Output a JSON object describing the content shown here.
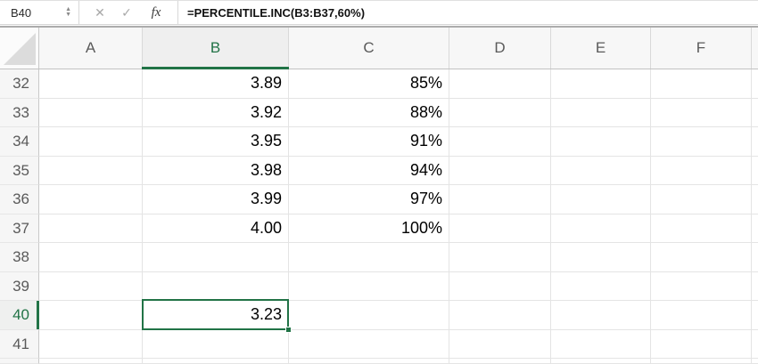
{
  "formula_bar": {
    "cell_reference": "B40",
    "formula": "=PERCENTILE.INC(B3:B37,60%)",
    "icons": {
      "stepper_up": "▲",
      "stepper_down": "▼",
      "cancel": "✕",
      "confirm": "✓",
      "function": "fx"
    }
  },
  "grid": {
    "column_headers": [
      "A",
      "B",
      "C",
      "D",
      "E",
      "F"
    ],
    "selected_column": "B",
    "selected_row": "40",
    "active_cell": "B40",
    "rows": [
      {
        "num": "32",
        "cells": [
          "",
          "3.89",
          "85%",
          "",
          "",
          ""
        ]
      },
      {
        "num": "33",
        "cells": [
          "",
          "3.92",
          "88%",
          "",
          "",
          ""
        ]
      },
      {
        "num": "34",
        "cells": [
          "",
          "3.95",
          "91%",
          "",
          "",
          ""
        ]
      },
      {
        "num": "35",
        "cells": [
          "",
          "3.98",
          "94%",
          "",
          "",
          ""
        ]
      },
      {
        "num": "36",
        "cells": [
          "",
          "3.99",
          "97%",
          "",
          "",
          ""
        ]
      },
      {
        "num": "37",
        "cells": [
          "",
          "4.00",
          "100%",
          "",
          "",
          ""
        ]
      },
      {
        "num": "38",
        "cells": [
          "",
          "",
          "",
          "",
          "",
          ""
        ]
      },
      {
        "num": "39",
        "cells": [
          "",
          "",
          "",
          "",
          "",
          ""
        ]
      },
      {
        "num": "40",
        "cells": [
          "",
          "3.23",
          "",
          "",
          "",
          ""
        ]
      },
      {
        "num": "41",
        "cells": [
          "",
          "",
          "",
          "",
          "",
          ""
        ]
      }
    ]
  },
  "colors": {
    "accent_green": "#217346",
    "header_text": "#5a5a5a",
    "grid_line": "#e4e4e4",
    "selected_header_bg": "#efefef"
  }
}
